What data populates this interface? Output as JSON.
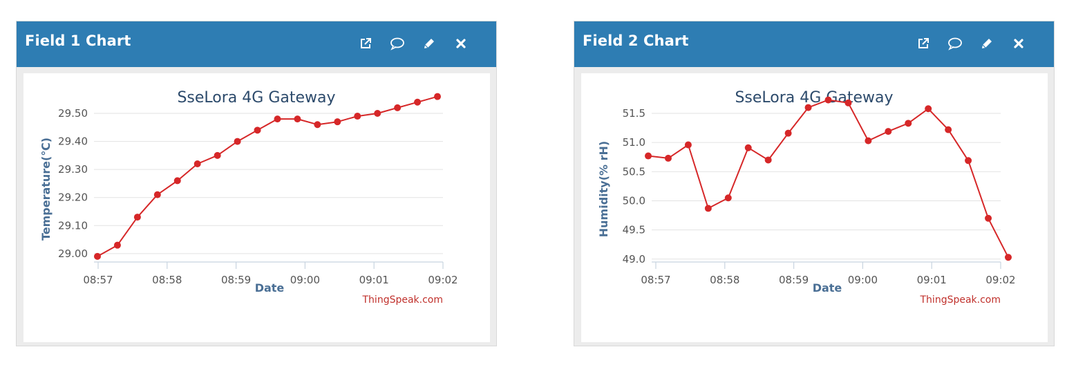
{
  "panels": [
    {
      "title": "Field 1 Chart",
      "tools": [
        {
          "icon": "external-link-icon",
          "label": "Open in new window"
        },
        {
          "icon": "comment-icon",
          "label": "Comment"
        },
        {
          "icon": "pencil-icon",
          "label": "Edit"
        },
        {
          "icon": "close-icon",
          "label": "Close"
        }
      ]
    },
    {
      "title": "Field 2 Chart",
      "tools": [
        {
          "icon": "external-link-icon",
          "label": "Open in new window"
        },
        {
          "icon": "comment-icon",
          "label": "Comment"
        },
        {
          "icon": "pencil-icon",
          "label": "Edit"
        },
        {
          "icon": "close-icon",
          "label": "Close"
        }
      ]
    }
  ],
  "chart_data": [
    {
      "type": "line",
      "title": "SseLora 4G Gateway",
      "xlabel": "Date",
      "ylabel": "Temperature(℃)",
      "credit": "ThingSpeak.com",
      "color": "#d62728",
      "x_ticks": [
        "08:57",
        "08:58",
        "08:59",
        "09:00",
        "09:01",
        "09:02"
      ],
      "x_tick_positions": [
        0,
        1,
        2,
        3,
        4,
        5
      ],
      "xlim": [
        -0.06,
        5
      ],
      "y_ticks": [
        "29.00",
        "29.10",
        "29.20",
        "29.30",
        "29.40",
        "29.50"
      ],
      "y_tick_values": [
        29.0,
        29.1,
        29.2,
        29.3,
        29.4,
        29.5
      ],
      "ylim": [
        28.97,
        29.5
      ],
      "grid": true,
      "x": [
        -0.01,
        0.28,
        0.57,
        0.86,
        1.15,
        1.44,
        1.73,
        2.02,
        2.31,
        2.6,
        2.89,
        3.18,
        3.47,
        3.76,
        4.05,
        4.34,
        4.63,
        4.92
      ],
      "values": [
        28.99,
        29.03,
        29.13,
        29.21,
        29.26,
        29.32,
        29.35,
        29.4,
        29.44,
        29.48,
        29.48,
        29.46,
        29.47,
        29.49,
        29.5,
        29.52,
        29.54,
        29.56
      ]
    },
    {
      "type": "line",
      "title": "SseLora 4G Gateway",
      "xlabel": "Date",
      "ylabel": "Humidity(% rH)",
      "credit": "ThingSpeak.com",
      "color": "#d62728",
      "x_ticks": [
        "08:57",
        "08:58",
        "08:59",
        "09:00",
        "09:01",
        "09:02"
      ],
      "x_tick_positions": [
        0,
        1,
        2,
        3,
        4,
        5
      ],
      "xlim": [
        -0.06,
        5
      ],
      "y_ticks": [
        "49.0",
        "49.5",
        "50.0",
        "50.5",
        "51.0",
        "51.5"
      ],
      "y_tick_values": [
        49.0,
        49.5,
        50.0,
        50.5,
        51.0,
        51.5
      ],
      "ylim": [
        48.95,
        51.5
      ],
      "grid": true,
      "x": [
        -0.11,
        0.18,
        0.47,
        0.76,
        1.05,
        1.34,
        1.63,
        1.92,
        2.21,
        2.5,
        2.79,
        3.08,
        3.37,
        3.66,
        3.95,
        4.24,
        4.53,
        4.82,
        5.11
      ],
      "values": [
        50.77,
        50.73,
        50.96,
        49.87,
        50.05,
        50.91,
        50.7,
        51.16,
        51.6,
        51.73,
        51.68,
        51.03,
        51.19,
        51.33,
        51.58,
        51.22,
        50.69,
        49.7,
        49.03
      ]
    }
  ]
}
